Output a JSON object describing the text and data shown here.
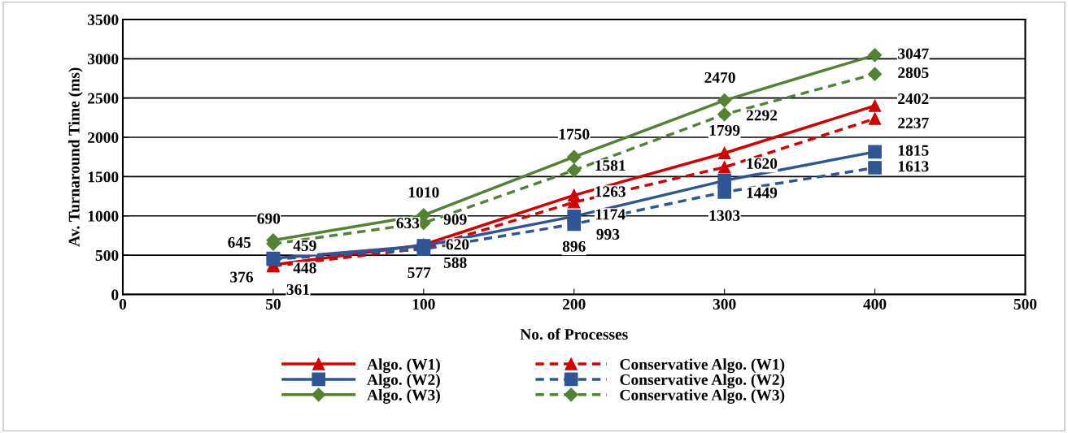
{
  "chart_data": {
    "type": "line",
    "xlabel": "No. of Processes",
    "ylabel": "Av. Turnaround Time (ms)",
    "categories": [
      "0",
      "50",
      "100",
      "200",
      "300",
      "400",
      "500"
    ],
    "ylim": [
      0,
      3500
    ],
    "yticks": [
      0,
      500,
      1000,
      1500,
      2000,
      2500,
      3000,
      3500
    ],
    "grid": "y",
    "legend": "bottom",
    "data_labels": true,
    "series": [
      {
        "name": "Algo. (W1)",
        "color": "#d40000",
        "marker": "triangle",
        "line_style": "solid",
        "values": [
          null,
          376,
          633,
          1263,
          1799,
          2402,
          null
        ]
      },
      {
        "name": "Conservative Algo. (W1)",
        "color": "#d40000",
        "marker": "triangle",
        "line_style": "dashed",
        "values": [
          null,
          361,
          588,
          1174,
          1620,
          2237,
          null
        ]
      },
      {
        "name": "Algo. (W2)",
        "color": "#2f5597",
        "marker": "square",
        "line_style": "solid",
        "values": [
          null,
          459,
          620,
          993,
          1449,
          1815,
          null
        ]
      },
      {
        "name": "Conservative Algo. (W2)",
        "color": "#2f5597",
        "marker": "square",
        "line_style": "dashed",
        "values": [
          null,
          448,
          577,
          896,
          1303,
          1613,
          null
        ]
      },
      {
        "name": "Algo. (W3)",
        "color": "#548235",
        "marker": "diamond",
        "line_style": "solid",
        "values": [
          null,
          690,
          1010,
          1750,
          2470,
          3047,
          null
        ]
      },
      {
        "name": "Conservative Algo. (W3)",
        "color": "#548235",
        "marker": "diamond",
        "line_style": "dashed",
        "values": [
          null,
          645,
          909,
          1581,
          2292,
          2805,
          null
        ]
      }
    ]
  }
}
